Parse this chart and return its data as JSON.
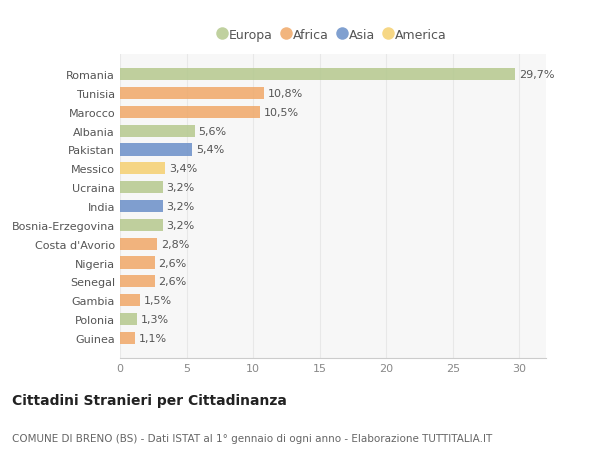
{
  "categories": [
    "Romania",
    "Tunisia",
    "Marocco",
    "Albania",
    "Pakistan",
    "Messico",
    "Ucraina",
    "India",
    "Bosnia-Erzegovina",
    "Costa d'Avorio",
    "Nigeria",
    "Senegal",
    "Gambia",
    "Polonia",
    "Guinea"
  ],
  "values": [
    29.7,
    10.8,
    10.5,
    5.6,
    5.4,
    3.4,
    3.2,
    3.2,
    3.2,
    2.8,
    2.6,
    2.6,
    1.5,
    1.3,
    1.1
  ],
  "labels": [
    "29,7%",
    "10,8%",
    "10,5%",
    "5,6%",
    "5,4%",
    "3,4%",
    "3,2%",
    "3,2%",
    "3,2%",
    "2,8%",
    "2,6%",
    "2,6%",
    "1,5%",
    "1,3%",
    "1,1%"
  ],
  "continent": [
    "Europa",
    "Africa",
    "Africa",
    "Europa",
    "Asia",
    "America",
    "Europa",
    "Asia",
    "Europa",
    "Africa",
    "Africa",
    "Africa",
    "Africa",
    "Europa",
    "Africa"
  ],
  "colors": {
    "Europa": "#b5c98e",
    "Africa": "#f0a868",
    "Asia": "#6a8fc8",
    "America": "#f5d070"
  },
  "legend_order": [
    "Europa",
    "Africa",
    "Asia",
    "America"
  ],
  "title": "Cittadini Stranieri per Cittadinanza",
  "subtitle": "COMUNE DI BRENO (BS) - Dati ISTAT al 1° gennaio di ogni anno - Elaborazione TUTTITALIA.IT",
  "xlim": [
    0,
    32
  ],
  "xticks": [
    0,
    5,
    10,
    15,
    20,
    25,
    30
  ],
  "bg_color": "#ffffff",
  "plot_bg_color": "#f7f7f7",
  "grid_color": "#e8e8e8",
  "bar_height": 0.65,
  "label_fontsize": 8,
  "tick_fontsize": 8,
  "title_fontsize": 10,
  "subtitle_fontsize": 7.5,
  "legend_fontsize": 9
}
